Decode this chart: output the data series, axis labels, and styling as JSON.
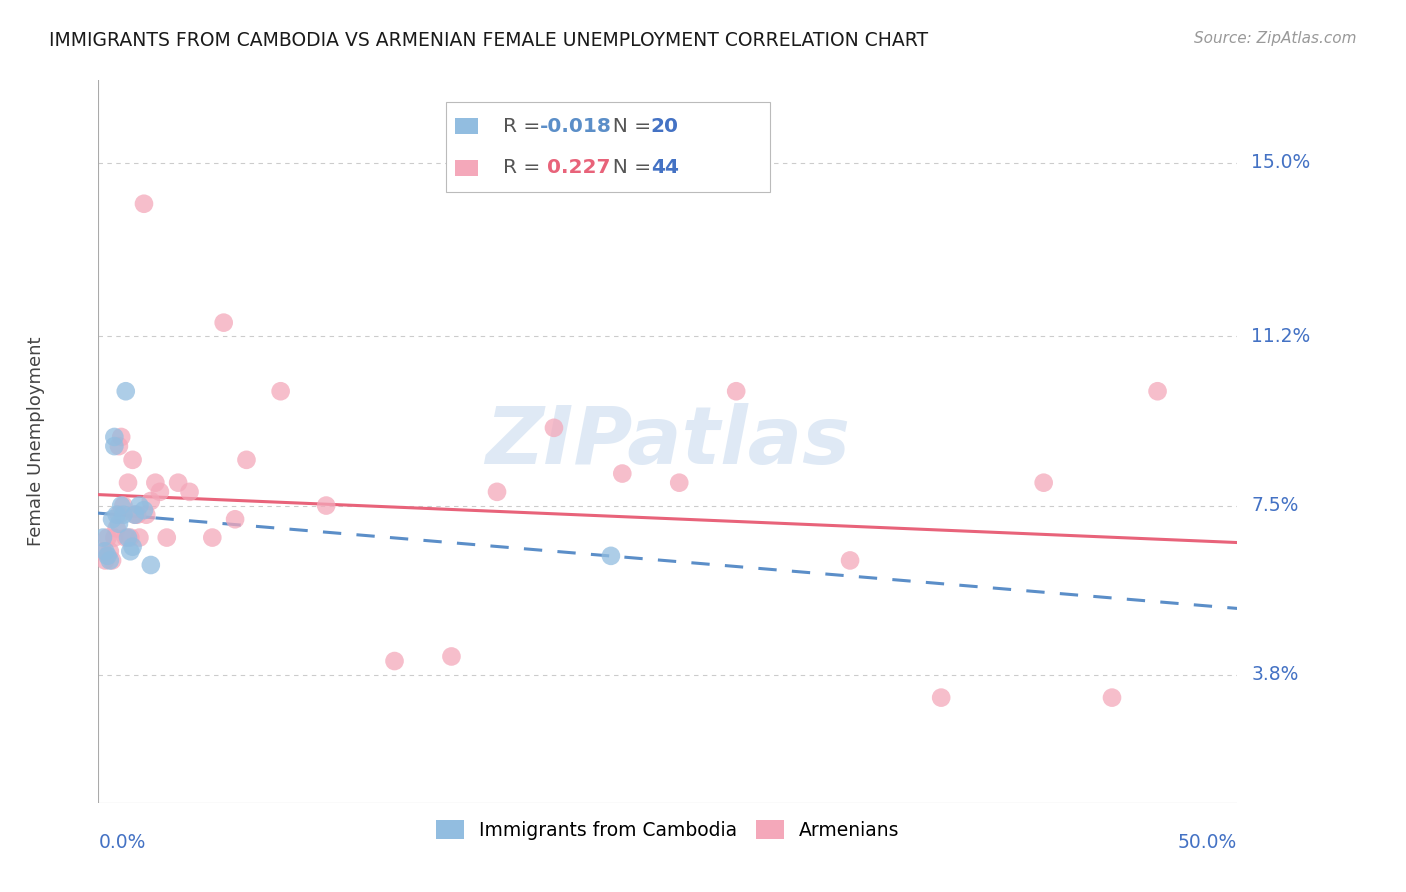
{
  "title": "IMMIGRANTS FROM CAMBODIA VS ARMENIAN FEMALE UNEMPLOYMENT CORRELATION CHART",
  "source": "Source: ZipAtlas.com",
  "ylabel": "Female Unemployment",
  "legend_label1": "Immigrants from Cambodia",
  "legend_label2": "Armenians",
  "R1": "-0.018",
  "N1": "20",
  "R2": "0.227",
  "N2": "44",
  "ytick_labels": [
    "15.0%",
    "11.2%",
    "7.5%",
    "3.8%"
  ],
  "ytick_values": [
    0.15,
    0.112,
    0.075,
    0.038
  ],
  "xmin": 0.0,
  "xmax": 0.5,
  "ymin": 0.01,
  "ymax": 0.168,
  "color_cambodia": "#92BDE0",
  "color_armenian": "#F4A8BA",
  "color_trendline_cambodia": "#5B8EC8",
  "color_trendline_armenian": "#E8637A",
  "color_axis_labels": "#4472C4",
  "color_title": "#1a1a1a",
  "watermark": "ZIPatlas",
  "watermark_color": "#C5D8EE",
  "cambodia_x": [
    0.002,
    0.003,
    0.004,
    0.005,
    0.006,
    0.007,
    0.007,
    0.008,
    0.009,
    0.01,
    0.011,
    0.012,
    0.013,
    0.014,
    0.015,
    0.016,
    0.018,
    0.02,
    0.023,
    0.225
  ],
  "cambodia_y": [
    0.068,
    0.065,
    0.064,
    0.063,
    0.072,
    0.09,
    0.088,
    0.073,
    0.071,
    0.075,
    0.073,
    0.1,
    0.068,
    0.065,
    0.066,
    0.073,
    0.075,
    0.074,
    0.062,
    0.064
  ],
  "armenian_x": [
    0.002,
    0.003,
    0.004,
    0.005,
    0.006,
    0.007,
    0.008,
    0.009,
    0.009,
    0.01,
    0.011,
    0.012,
    0.013,
    0.014,
    0.015,
    0.016,
    0.017,
    0.018,
    0.02,
    0.021,
    0.023,
    0.025,
    0.027,
    0.03,
    0.035,
    0.04,
    0.05,
    0.055,
    0.06,
    0.065,
    0.08,
    0.1,
    0.13,
    0.155,
    0.175,
    0.2,
    0.23,
    0.255,
    0.28,
    0.33,
    0.37,
    0.415,
    0.445,
    0.465
  ],
  "armenian_y": [
    0.065,
    0.063,
    0.068,
    0.065,
    0.063,
    0.068,
    0.07,
    0.073,
    0.088,
    0.09,
    0.075,
    0.068,
    0.08,
    0.068,
    0.085,
    0.073,
    0.073,
    0.068,
    0.141,
    0.073,
    0.076,
    0.08,
    0.078,
    0.068,
    0.08,
    0.078,
    0.068,
    0.115,
    0.072,
    0.085,
    0.1,
    0.075,
    0.041,
    0.042,
    0.078,
    0.092,
    0.082,
    0.08,
    0.1,
    0.063,
    0.033,
    0.08,
    0.033,
    0.1
  ],
  "trendline_solid_end": 0.025,
  "gridline_color": "#CCCCCC",
  "border_color": "#AAAAAA"
}
